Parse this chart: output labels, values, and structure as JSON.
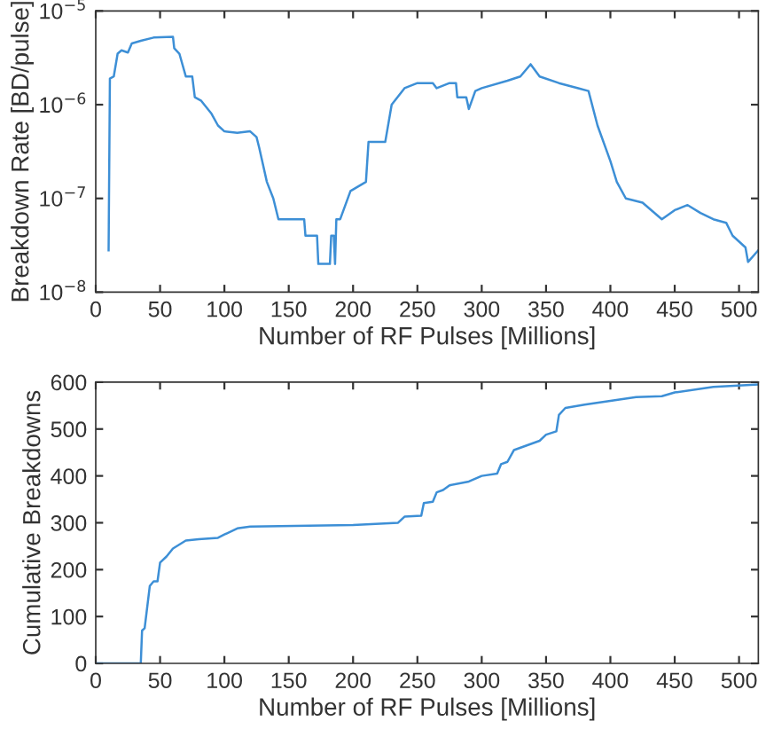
{
  "chart_data": [
    {
      "type": "line",
      "xlabel": "Number of RF Pulses [Millions]",
      "ylabel": "Breakdown Rate [BD/pulse]",
      "log": "y",
      "xlim": [
        0,
        515
      ],
      "xticks": [
        0,
        50,
        100,
        150,
        200,
        250,
        300,
        350,
        400,
        450,
        500
      ],
      "ylim": [
        1e-08,
        1e-05
      ],
      "yticks": [
        {
          "value": 1e-08,
          "label": "10$^{−8}$"
        },
        {
          "value": 1e-07,
          "label": "10$^{−7}$"
        },
        {
          "value": 1e-06,
          "label": "10$^{−6}$"
        },
        {
          "value": 1e-05,
          "label": "10$^{−5}$"
        }
      ],
      "grid": false,
      "line_style": "solid",
      "series": [
        {
          "color": "#3d8fd6",
          "x": [
            10,
            11,
            14,
            17,
            20,
            25,
            28,
            35,
            45,
            60,
            61,
            65,
            70,
            75,
            77,
            82,
            90,
            95,
            100,
            110,
            120,
            125,
            127,
            133,
            138,
            142,
            162,
            163,
            172,
            173,
            182,
            183,
            185,
            186,
            187,
            190,
            198,
            210,
            212,
            225,
            230,
            240,
            250,
            262,
            265,
            275,
            280,
            281,
            288,
            290,
            295,
            300,
            320,
            330,
            338,
            345,
            360,
            375,
            383,
            390,
            400,
            405,
            412,
            425,
            440,
            450,
            460,
            470,
            480,
            490,
            495,
            505,
            507,
            515
          ],
          "values": [
            2.8e-08,
            1.9e-06,
            2e-06,
            3.5e-06,
            3.8e-06,
            3.6e-06,
            4.5e-06,
            4.8e-06,
            5.2e-06,
            5.3e-06,
            4e-06,
            3.5e-06,
            2e-06,
            2e-06,
            1.2e-06,
            1.1e-06,
            8e-07,
            6e-07,
            5.2e-07,
            5e-07,
            5.2e-07,
            4.5e-07,
            3.5e-07,
            1.5e-07,
            1e-07,
            6e-08,
            6e-08,
            4e-08,
            4e-08,
            2e-08,
            2e-08,
            4e-08,
            4e-08,
            2e-08,
            6e-08,
            6e-08,
            1.2e-07,
            1.5e-07,
            4e-07,
            4e-07,
            1e-06,
            1.5e-06,
            1.7e-06,
            1.7e-06,
            1.5e-06,
            1.7e-06,
            1.7e-06,
            1.2e-06,
            1.2e-06,
            9e-07,
            1.4e-06,
            1.5e-06,
            1.8e-06,
            2e-06,
            2.7e-06,
            2e-06,
            1.7e-06,
            1.5e-06,
            1.4e-06,
            6e-07,
            2.5e-07,
            1.5e-07,
            1e-07,
            9e-08,
            6e-08,
            7.5e-08,
            8.5e-08,
            7e-08,
            6e-08,
            5.5e-08,
            4e-08,
            3e-08,
            2.1e-08,
            2.8e-08
          ]
        }
      ]
    },
    {
      "type": "line",
      "xlabel": "Number of RF Pulses [Millions]",
      "ylabel": "Cumulative Breakdowns",
      "xlim": [
        0,
        515
      ],
      "xticks": [
        0,
        50,
        100,
        150,
        200,
        250,
        300,
        350,
        400,
        450,
        500
      ],
      "ylim": [
        0,
        600
      ],
      "yticks": [
        0,
        100,
        200,
        300,
        400,
        500,
        600
      ],
      "grid": false,
      "line_style": "solid",
      "series": [
        {
          "color": "#3d8fd6",
          "x": [
            0,
            35,
            36,
            38,
            42,
            45,
            48,
            50,
            55,
            60,
            70,
            80,
            95,
            100,
            110,
            120,
            200,
            235,
            240,
            253,
            255,
            262,
            265,
            270,
            275,
            290,
            300,
            312,
            315,
            320,
            325,
            335,
            345,
            350,
            358,
            360,
            365,
            380,
            400,
            420,
            440,
            450,
            480,
            515
          ],
          "values": [
            0,
            0,
            70,
            75,
            165,
            175,
            175,
            215,
            228,
            245,
            262,
            265,
            268,
            275,
            288,
            292,
            295,
            300,
            313,
            315,
            342,
            345,
            365,
            370,
            380,
            388,
            400,
            405,
            425,
            430,
            455,
            465,
            475,
            488,
            495,
            530,
            545,
            552,
            560,
            568,
            570,
            578,
            590,
            595
          ]
        }
      ]
    }
  ]
}
